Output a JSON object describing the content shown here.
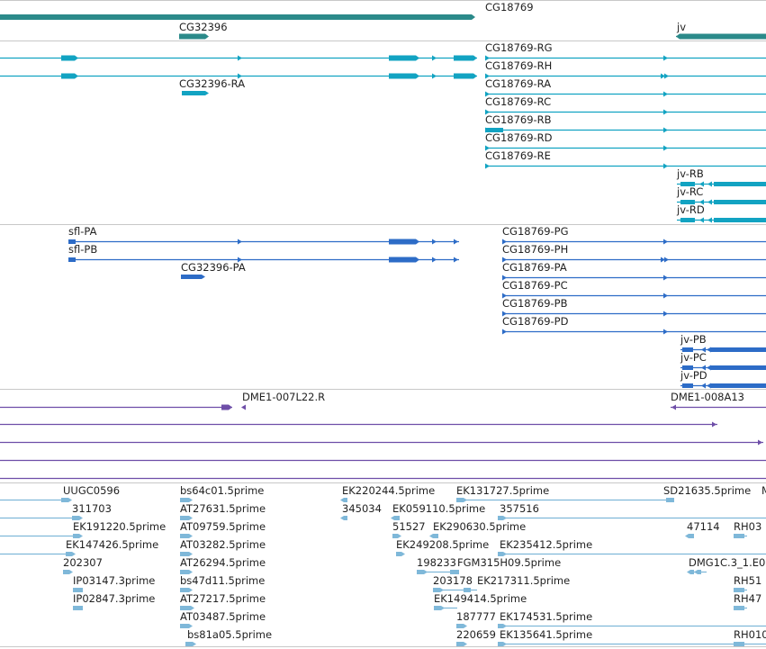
{
  "colors": {
    "gene": "#2b8a8a",
    "transcript": "#12a3c2",
    "protein": "#2d6cc7",
    "clone": "#6e4ea8",
    "est": "#7fb8d9",
    "separator": "#c8c8c8",
    "text": "#222222"
  },
  "genes": [
    {
      "id": "gene-cg18769",
      "label": "CG18769"
    },
    {
      "id": "gene-cg32396",
      "label": "CG32396"
    },
    {
      "id": "gene-jv",
      "label": "jv"
    }
  ],
  "transcripts": [
    "CG18769-RG",
    "CG18769-RH",
    "CG18769-RA",
    "CG18769-RC",
    "CG18769-RB",
    "CG18769-RD",
    "CG18769-RE",
    "CG32396-RA",
    "jv-RB",
    "jv-RC",
    "jv-RD"
  ],
  "proteins": [
    "sfl-PA",
    "sfl-PB",
    "CG32396-PA",
    "CG18769-PG",
    "CG18769-PH",
    "CG18769-PA",
    "CG18769-PC",
    "CG18769-PB",
    "CG18769-PD",
    "jv-PB",
    "jv-PC",
    "jv-PD"
  ],
  "clones": [
    "DME1-007L22.R",
    "DME1-008A13"
  ],
  "ests": [
    "UUGC0596",
    "311703",
    "EK191220.5prime",
    "EK147426.5prime",
    "202307",
    "IP03147.3prime",
    "IP02847.3prime",
    "bs64c01.5prime",
    "AT27631.5prime",
    "AT09759.5prime",
    "AT03282.5prime",
    "AT26294.5prime",
    "bs47d11.5prime",
    "AT27217.5prime",
    "AT03487.5prime",
    "bs81a05.5prime",
    "EK220244.5prime",
    "345034",
    "EK059110.5prime",
    "51527",
    "EK290630.5prime",
    "EK249208.5prime",
    "198233",
    "FGM315H09.5prime",
    "203178",
    "EK217311.5prime",
    "EK149414.5prime",
    "187777",
    "EK174531.5prime",
    "220659",
    "EK135641.5prime",
    "EK131727.5prime",
    "357516",
    "EK235412.5prime",
    "SD21635.5prime",
    "M",
    "47114",
    "RH03",
    "DMG1C.3_1.E0",
    "RH51",
    "RH47",
    "RH010"
  ]
}
